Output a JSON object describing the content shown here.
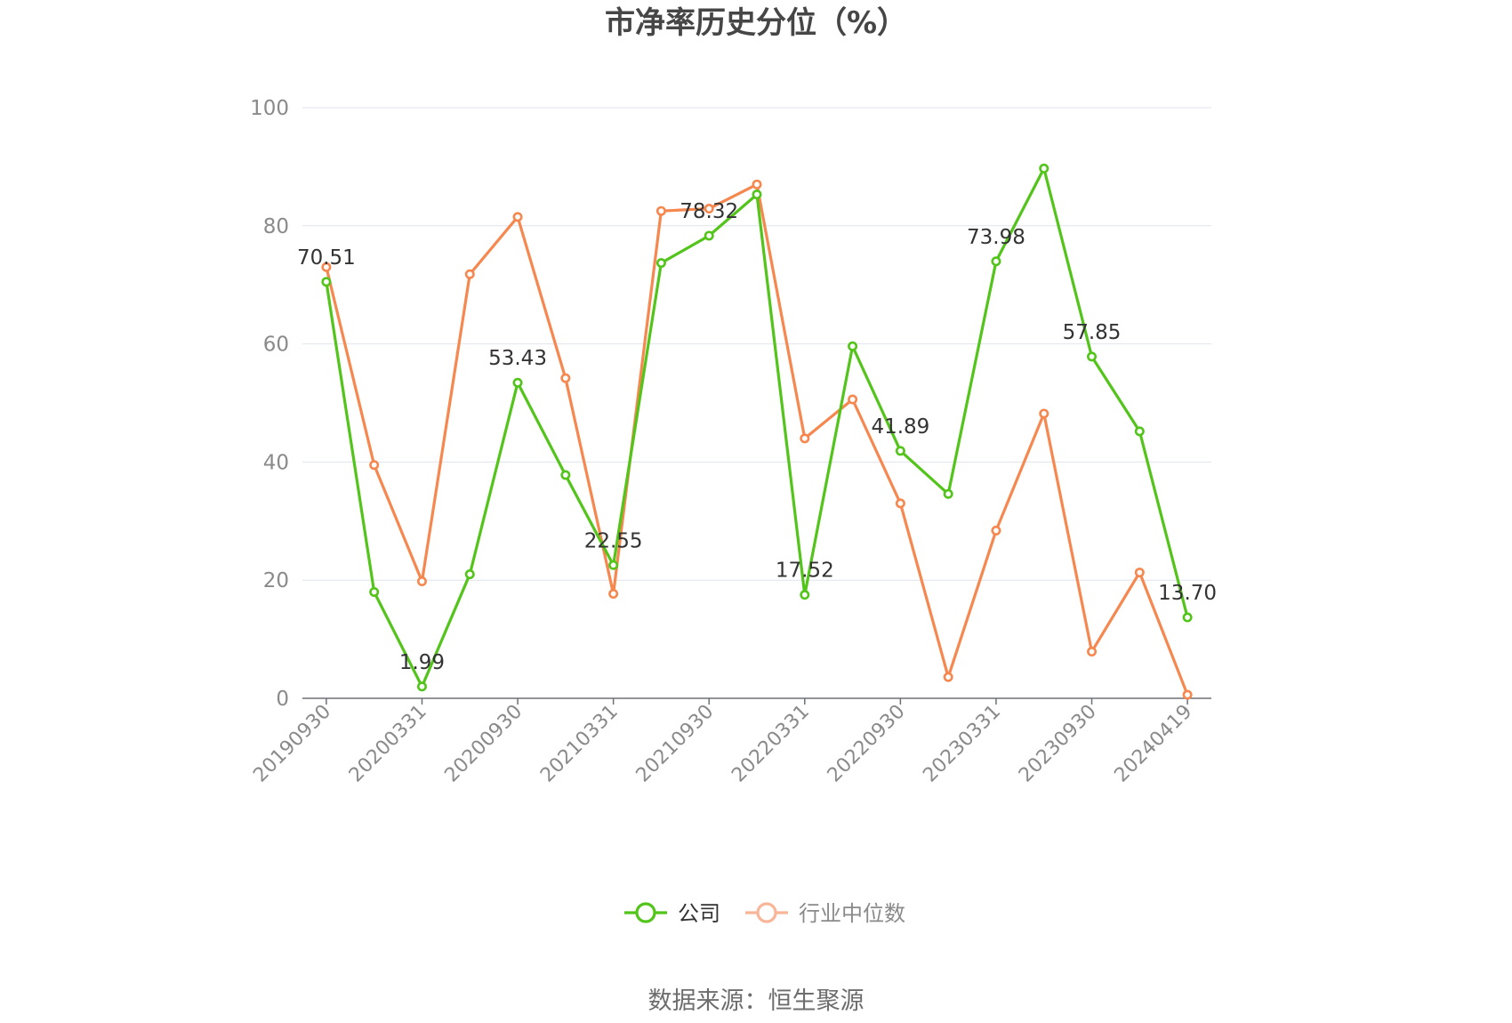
{
  "chart_data": {
    "type": "line",
    "title": "市净率历史分位（%）",
    "source": "数据来源：恒生聚源",
    "ylim": [
      0,
      100
    ],
    "yticks": [
      "0",
      "20",
      "40",
      "60",
      "80",
      "100"
    ],
    "xtick_labels": [
      "20190930",
      "20200331",
      "20200930",
      "20210331",
      "20210930",
      "20220331",
      "20220930",
      "20230331",
      "20230930",
      "20240419"
    ],
    "series": [
      {
        "name": "公司",
        "color": "#52c41a",
        "values": [
          70.51,
          18.0,
          1.99,
          21.0,
          53.43,
          37.8,
          22.55,
          73.7,
          78.32,
          85.3,
          17.52,
          59.6,
          41.89,
          34.6,
          73.98,
          89.7,
          57.85,
          45.2,
          13.7
        ],
        "labels": [
          "70.51",
          "",
          "1.99",
          "",
          "53.43",
          "",
          "22.55",
          "",
          "78.32",
          "",
          "17.52",
          "",
          "41.89",
          "",
          "73.98",
          "",
          "57.85",
          "",
          "13.70"
        ]
      },
      {
        "name": "行业中位数",
        "color": "#f5874f",
        "values": [
          73.0,
          39.5,
          19.8,
          71.8,
          81.5,
          54.2,
          17.7,
          82.5,
          82.9,
          87.0,
          44.0,
          50.6,
          33.0,
          3.6,
          28.4,
          48.2,
          7.9,
          21.3,
          0.6
        ]
      }
    ],
    "legend": {
      "position": "bottom",
      "items": [
        {
          "name": "公司",
          "text_color": "#333333",
          "marker_color": "#52c41a"
        },
        {
          "name": "行业中位数",
          "text_color": "#8a8a8a",
          "marker_color": "#f9b597"
        }
      ]
    },
    "grid": true
  }
}
